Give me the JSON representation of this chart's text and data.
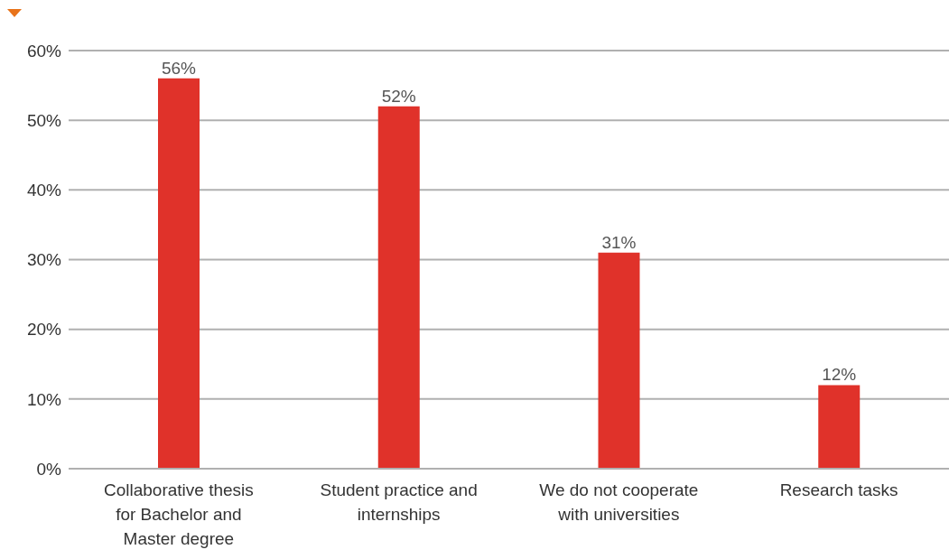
{
  "chart_data": {
    "type": "bar",
    "categories": [
      "Collaborative thesis for Bachelor and Master degree",
      "Student practice and internships",
      "We do not cooperate with universities",
      "Research tasks"
    ],
    "values": [
      56,
      52,
      31,
      12
    ],
    "color": "#e0322a",
    "value_labels": [
      "56%",
      "52%",
      "31%",
      "12%"
    ],
    "ylim": [
      0,
      60
    ],
    "yticks": [
      {
        "value": 0,
        "label": "0%"
      },
      {
        "value": 10,
        "label": "10%"
      },
      {
        "value": 20,
        "label": "20%"
      },
      {
        "value": 30,
        "label": "30%"
      },
      {
        "value": 40,
        "label": "40%"
      },
      {
        "value": 50,
        "label": "50%"
      },
      {
        "value": 60,
        "label": "60%"
      }
    ],
    "grid": "y",
    "legend": false
  }
}
